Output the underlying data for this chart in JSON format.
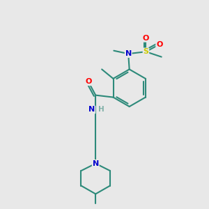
{
  "bg_color": "#e8e8e8",
  "bond_color": "#2d8a7a",
  "atom_colors": {
    "N": "#0000cd",
    "O": "#ff0000",
    "S": "#cccc00",
    "C": "#2d8a7a",
    "H": "#80b0a8"
  },
  "figsize": [
    3.0,
    3.0
  ],
  "dpi": 100
}
